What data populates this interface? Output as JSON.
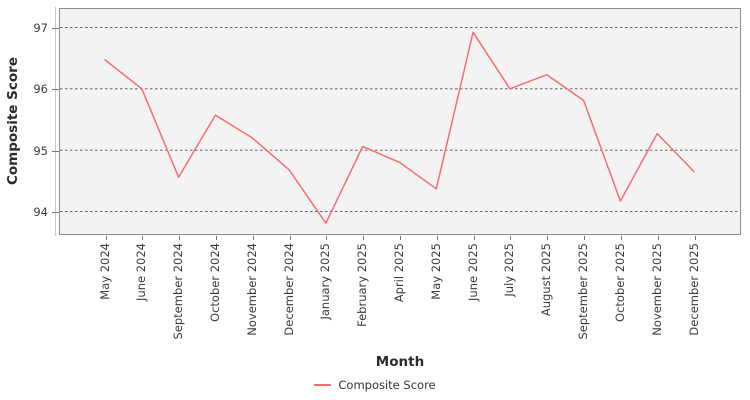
{
  "chart_data": {
    "type": "line",
    "title": "",
    "xlabel": "Month",
    "ylabel": "Composite Score",
    "categories": [
      "May 2024",
      "June 2024",
      "September 2024",
      "October 2024",
      "November 2024",
      "December 2024",
      "January 2025",
      "February 2025",
      "April 2025",
      "May 2025",
      "June 2025",
      "July 2025",
      "August 2025",
      "September 2025",
      "October 2025",
      "November 2025",
      "December 2025"
    ],
    "series": [
      {
        "name": "Composite Score",
        "color": "#f66e6e",
        "values": [
          96.47,
          96.0,
          94.56,
          95.57,
          95.2,
          94.68,
          93.81,
          95.06,
          94.8,
          94.37,
          96.92,
          96.0,
          96.23,
          95.81,
          94.17,
          95.27,
          94.65
        ]
      }
    ],
    "yticks": [
      "97",
      "96",
      "95",
      "94"
    ],
    "ylim": [
      93.65,
      97.3
    ],
    "grid": {
      "horizontal": true,
      "vertical": false,
      "style": "dashed"
    },
    "legend": {
      "position": "bottom-center"
    },
    "colors": {
      "panel_background": "#f3f3f3",
      "gridline": "#4d4d4d",
      "panel_border": "#8f8f8f",
      "tick_text": "#3c3c3c"
    }
  }
}
